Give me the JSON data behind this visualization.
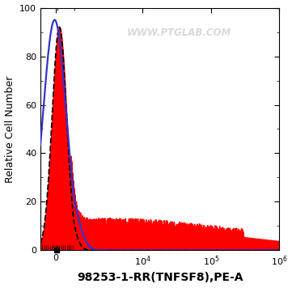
{
  "title": "",
  "xlabel": "98253-1-RR(TNFSF8),PE-A",
  "ylabel": "Relative Cell Number",
  "ylim": [
    0,
    100
  ],
  "watermark": "WWW.PTGLAB.COM",
  "bg_color": "#ffffff",
  "red_fill_color": "#ff0000",
  "blue_line_color": "#3333cc",
  "black_dashed_color": "#000000",
  "xlabel_fontsize": 10,
  "ylabel_fontsize": 9,
  "xlabel_fontweight": "bold",
  "linthresh": 1000,
  "linscale": 0.25,
  "xlim_left": -800,
  "xlim_right": 1000000,
  "yticks": [
    0,
    20,
    40,
    60,
    80,
    100
  ],
  "xtick_positions": [
    0,
    10000,
    100000,
    1000000
  ],
  "xtick_labels": [
    "0",
    "10$^4$",
    "10$^5$",
    "10$^6$"
  ]
}
